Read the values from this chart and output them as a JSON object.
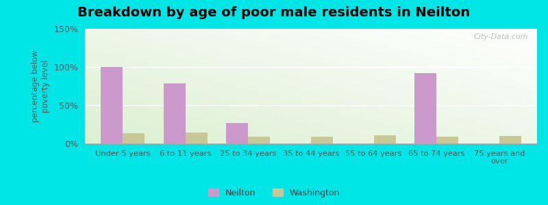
{
  "title": "Breakdown by age of poor male residents in Neilton",
  "ylabel": "percentage below\npoverty level",
  "categories": [
    "Under 5 years",
    "6 to 11 years",
    "25 to 34 years",
    "35 to 44 years",
    "55 to 64 years",
    "65 to 74 years",
    "75 years and\nover"
  ],
  "neilton_values": [
    100,
    79,
    27,
    0,
    0,
    92,
    0
  ],
  "washington_values": [
    13,
    14,
    9,
    9,
    11,
    9,
    10
  ],
  "neilton_color": "#cc99cc",
  "washington_color": "#c8c896",
  "ylim": [
    0,
    150
  ],
  "yticks": [
    0,
    50,
    100,
    150
  ],
  "ytick_labels": [
    "0%",
    "50%",
    "100%",
    "150%"
  ],
  "outer_background": "#00e5e5",
  "title_fontsize": 14,
  "legend_labels": [
    "Neilton",
    "Washington"
  ],
  "bar_width": 0.35,
  "watermark": "City-Data.com"
}
